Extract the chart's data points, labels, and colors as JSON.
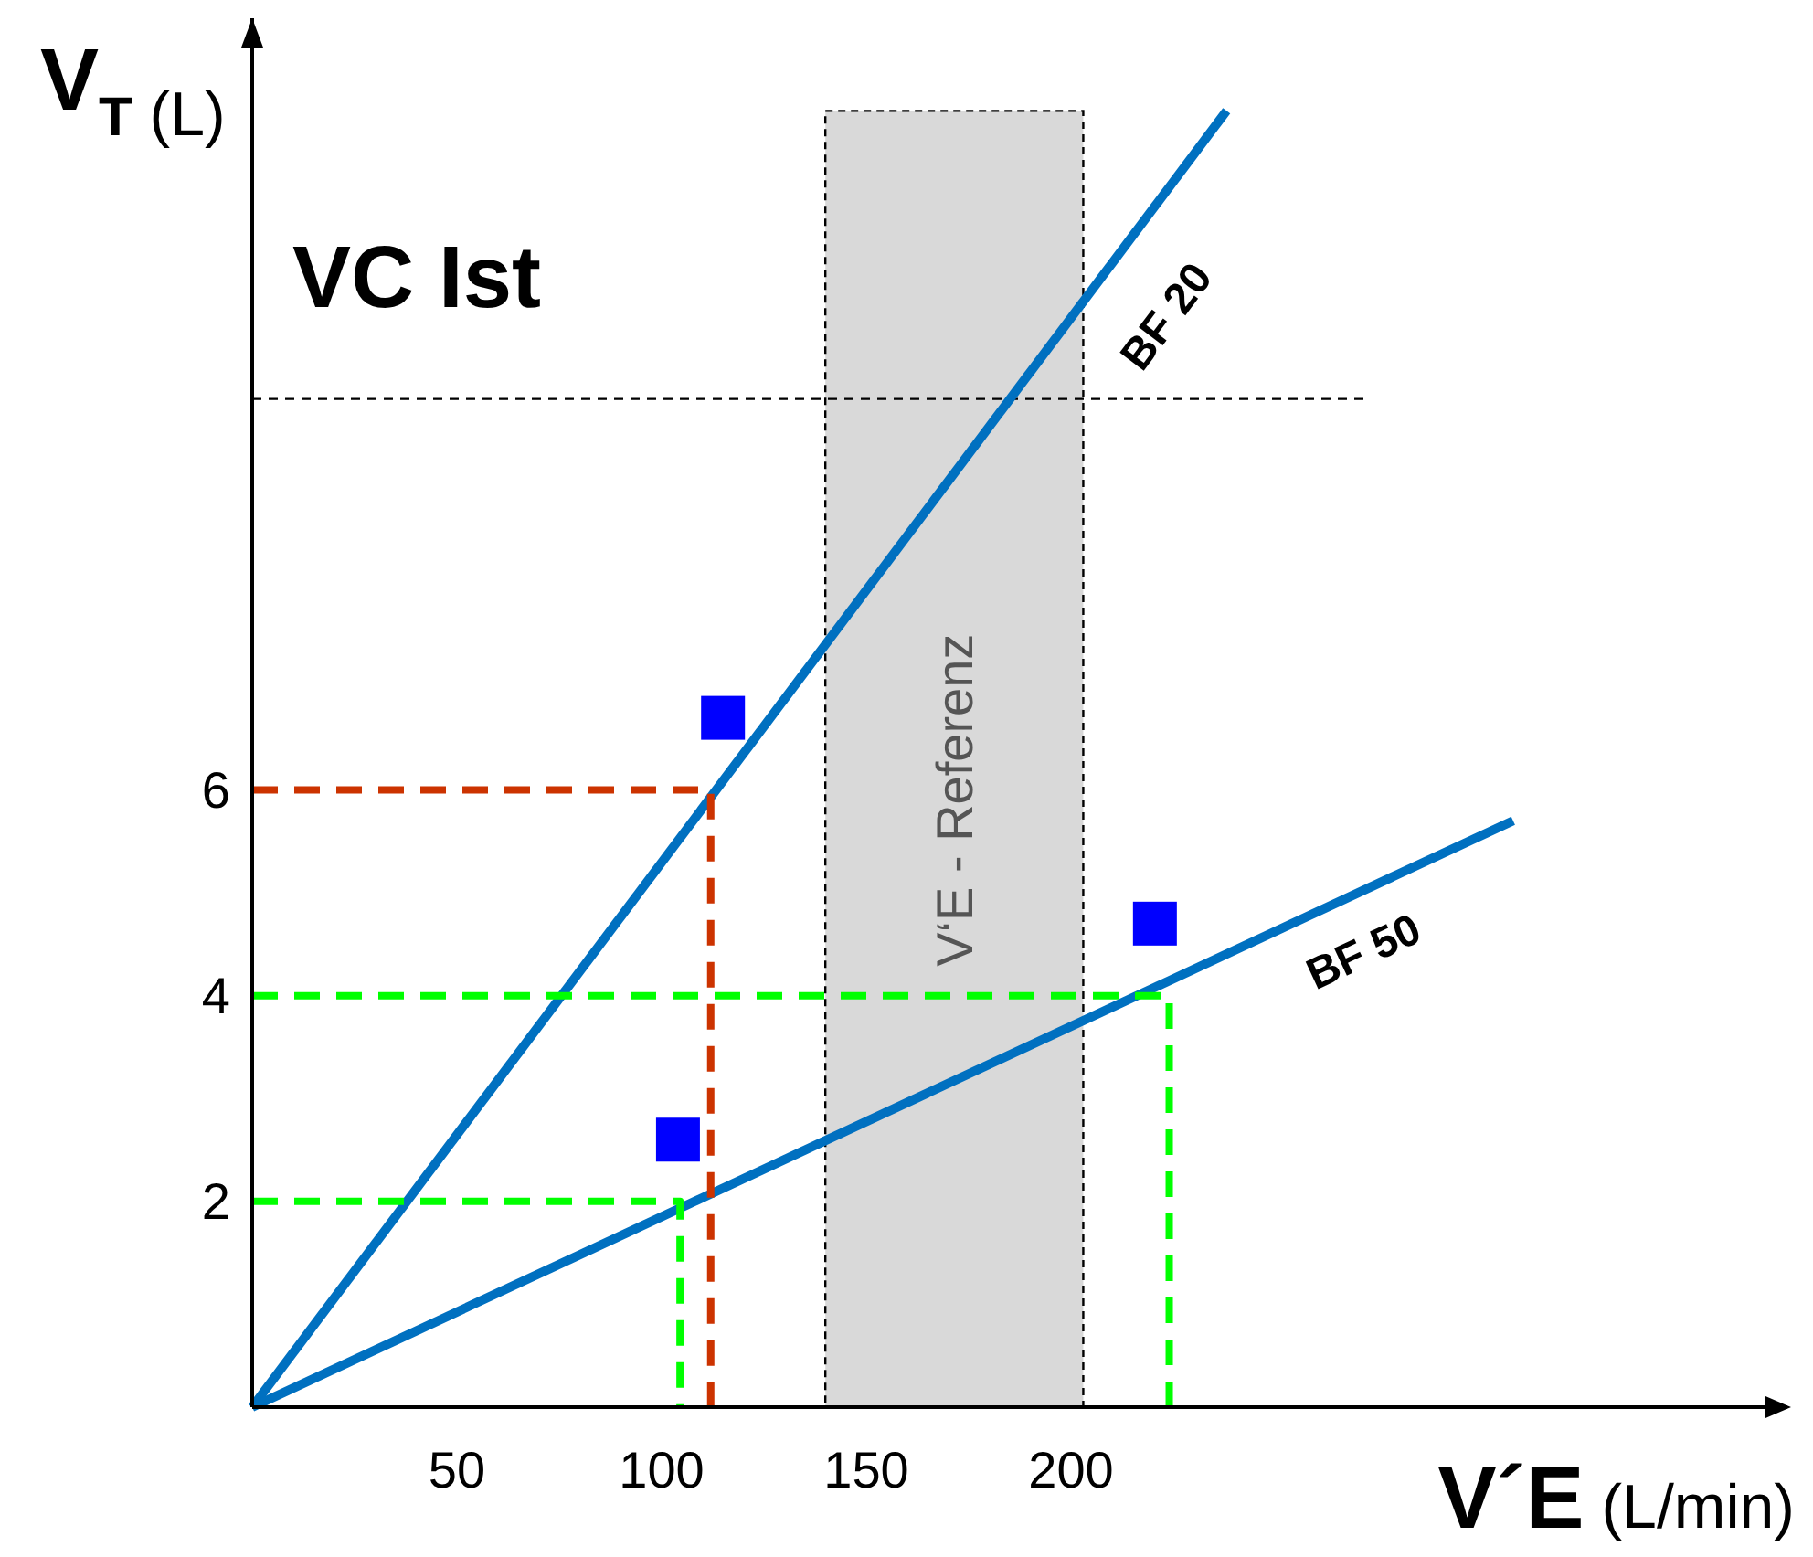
{
  "chart_data": {
    "type": "line",
    "xlabel": "V´E (L/min)",
    "ylabel": "V$_{T}$ (L)",
    "xlim": [
      0,
      375
    ],
    "ylim": [
      0,
      13.5
    ],
    "xticks": [
      50,
      100,
      150,
      200
    ],
    "yticks": [
      2,
      4,
      6
    ],
    "grid": false,
    "line_style": "solid",
    "marker": "none",
    "series": [
      {
        "name": "BF 20",
        "color": "#0070c0",
        "x": [
          0,
          238
        ],
        "values": [
          0,
          12.6
        ]
      },
      {
        "name": "BF 50",
        "color": "#0070c0",
        "x": [
          0,
          308
        ],
        "values": [
          0,
          5.7
        ]
      },
      {
        "color": "#cc3300",
        "line_style": "dashed",
        "x": [
          0,
          112,
          112
        ],
        "values": [
          6,
          6,
          0
        ]
      },
      {
        "color": "#00ff00",
        "line_style": "dashed",
        "x": [
          0,
          104.5,
          104.5
        ],
        "values": [
          2,
          2,
          0
        ]
      },
      {
        "color": "#00ff00",
        "line_style": "dashed",
        "x": [
          0,
          224,
          224
        ],
        "values": [
          4,
          4,
          0
        ]
      },
      {
        "type": "scatter",
        "marker": "square",
        "color": "#0000ff",
        "x": [
          115,
          104,
          220.5
        ],
        "values": [
          6.7,
          2.6,
          4.7
        ]
      }
    ],
    "bands": [
      {
        "axis": "x",
        "from": 140,
        "to": 203,
        "label": "V‘E - Referenz",
        "color": "#d9d9d9"
      }
    ],
    "ref_lines": [
      {
        "axis": "y",
        "value": 9.8,
        "color": "#000000",
        "line_style": "dashed"
      }
    ],
    "annotations": [
      "VC Ist"
    ]
  }
}
